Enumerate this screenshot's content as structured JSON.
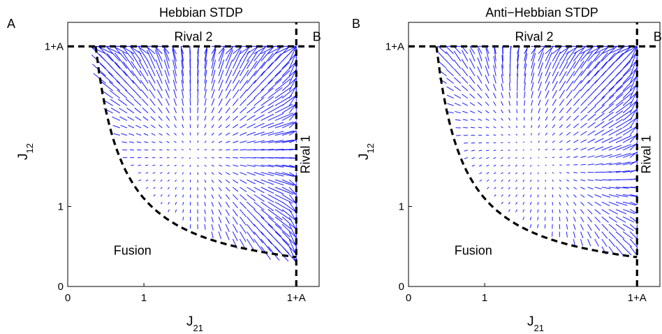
{
  "chart_data": [
    {
      "type": "quiver",
      "panel_letter": "A",
      "title": "Hebbian STDP",
      "xlabel": {
        "main": "J",
        "sub": "21"
      },
      "ylabel": {
        "main": "J",
        "sub": "12"
      },
      "xticks": [
        {
          "value": 0,
          "label": "0"
        },
        {
          "value": 1,
          "label": "1"
        },
        {
          "value": 3,
          "label": "1+A"
        }
      ],
      "yticks": [
        {
          "value": 0,
          "label": "0"
        },
        {
          "value": 1,
          "label": "1"
        },
        {
          "value": 3,
          "label": "1+A"
        }
      ],
      "xlim": [
        0,
        3.3
      ],
      "ylim": [
        0,
        3.3
      ],
      "grid": false,
      "arrow_color": "#1a1aff",
      "boundary_bound": 3,
      "fusion_curve_c": 1.1,
      "grid_range": [
        0.5,
        3.0
      ],
      "grid_n": 28,
      "field_mode": "hebbian",
      "regions": [
        {
          "label": "Rival 2",
          "x": 1.65,
          "y": 3.12,
          "rotate": false
        },
        {
          "label": "Rival 1",
          "x": 3.12,
          "y": 1.65,
          "rotate": true
        },
        {
          "label": "Fusion",
          "x": 0.85,
          "y": 0.45,
          "rotate": false
        },
        {
          "label": "B",
          "x": 3.27,
          "y": 3.12,
          "rotate": false
        }
      ]
    },
    {
      "type": "quiver",
      "panel_letter": "B",
      "title": "Anti−Hebbian STDP",
      "xlabel": {
        "main": "J",
        "sub": "21"
      },
      "ylabel": {
        "main": "J",
        "sub": "12"
      },
      "xticks": [
        {
          "value": 0,
          "label": "0"
        },
        {
          "value": 1,
          "label": "1"
        },
        {
          "value": 3,
          "label": "1+A"
        }
      ],
      "yticks": [
        {
          "value": 0,
          "label": "0"
        },
        {
          "value": 1,
          "label": "1"
        },
        {
          "value": 3,
          "label": "1+A"
        }
      ],
      "xlim": [
        0,
        3.3
      ],
      "ylim": [
        0,
        3.3
      ],
      "grid": false,
      "arrow_color": "#1a1aff",
      "boundary_bound": 3,
      "fusion_curve_c": 1.1,
      "grid_range": [
        0.5,
        3.0
      ],
      "grid_n": 28,
      "field_mode": "antihebbian",
      "regions": [
        {
          "label": "Rival 2",
          "x": 1.65,
          "y": 3.12,
          "rotate": false
        },
        {
          "label": "Rival 1",
          "x": 3.12,
          "y": 1.65,
          "rotate": true
        },
        {
          "label": "Fusion",
          "x": 0.85,
          "y": 0.45,
          "rotate": false
        },
        {
          "label": "B",
          "x": 3.27,
          "y": 3.12,
          "rotate": false
        }
      ]
    }
  ]
}
